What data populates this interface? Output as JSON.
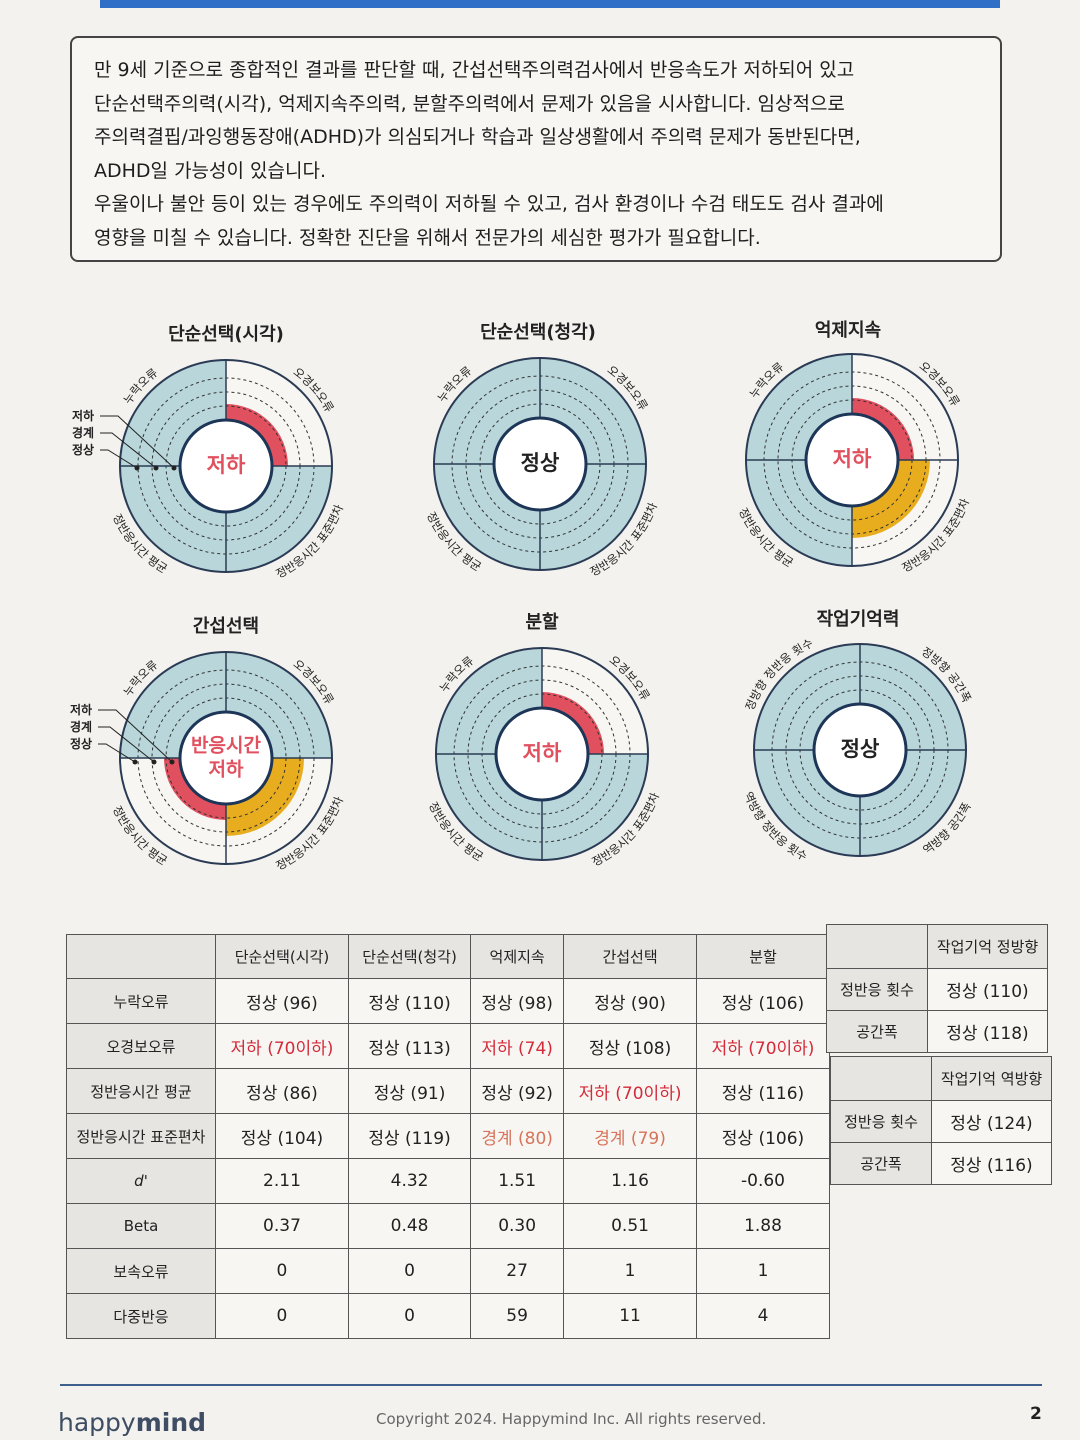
{
  "summary": {
    "lines": [
      "만 9세 기준으로 종합적인 결과를 판단할 때, 간섭선택주의력검사에서 반응속도가 저하되어 있고",
      "단순선택주의력(시각), 억제지속주의력, 분할주의력에서 문제가 있음을 시사합니다. 임상적으로",
      "주의력결핍/과잉행동장애(ADHD)가 의심되거나 학습과 일상생활에서 주의력 문제가 동반된다면,",
      "ADHD일 가능성이 있습니다.",
      "우울이나 불안 등이 있는 경우에도 주의력이 저하될 수 있고, 검사 환경이나 수검 태도도 검사 결과에",
      "영향을 미칠 수 있습니다. 정확한 진단을 위해서 전문가의 세심한 평가가 필요합니다."
    ]
  },
  "scale_key": [
    "저하",
    "경계",
    "정상"
  ],
  "colors": {
    "base": "#b9d6da",
    "low": "#e0505f",
    "border": "#e8ad1f",
    "normal_outline": "#1d3557"
  },
  "radar_charts": [
    {
      "title": "단순선택(시각)",
      "center": [
        "저하"
      ],
      "center_status": "low",
      "labels": [
        "누락오류",
        "오경보오류",
        "정반응시간 표준편차",
        "정반응시간 평균"
      ],
      "segments": [
        {
          "quadrant": "tr",
          "level": "low"
        },
        {
          "quadrant": "tl",
          "level": "normal"
        },
        {
          "quadrant": "br",
          "level": "normal"
        },
        {
          "quadrant": "bl",
          "level": "normal"
        }
      ]
    },
    {
      "title": "단순선택(청각)",
      "center": [
        "정상"
      ],
      "center_status": "normal",
      "labels": [
        "누락오류",
        "오경보오류",
        "정반응시간 표준편차",
        "정반응시간 평균"
      ],
      "segments": [
        {
          "quadrant": "tl",
          "level": "normal"
        },
        {
          "quadrant": "tr",
          "level": "normal"
        },
        {
          "quadrant": "br",
          "level": "normal"
        },
        {
          "quadrant": "bl",
          "level": "normal"
        }
      ]
    },
    {
      "title": "억제지속",
      "center": [
        "저하"
      ],
      "center_status": "low",
      "labels": [
        "누락오류",
        "오경보오류",
        "정반응시간 표준편차",
        "정반응시간 평균"
      ],
      "segments": [
        {
          "quadrant": "tr",
          "level": "low"
        },
        {
          "quadrant": "br",
          "level": "border"
        },
        {
          "quadrant": "tl",
          "level": "normal"
        },
        {
          "quadrant": "bl",
          "level": "normal"
        }
      ]
    },
    {
      "title": "간섭선택",
      "center": [
        "반응시간",
        "저하"
      ],
      "center_status": "low",
      "labels": [
        "누락오류",
        "오경보오류",
        "정반응시간 표준편차",
        "정반응시간 평균"
      ],
      "segments": [
        {
          "quadrant": "bl",
          "level": "low"
        },
        {
          "quadrant": "br",
          "level": "border"
        },
        {
          "quadrant": "tl",
          "level": "normal"
        },
        {
          "quadrant": "tr",
          "level": "normal"
        }
      ]
    },
    {
      "title": "분할",
      "center": [
        "저하"
      ],
      "center_status": "low",
      "labels": [
        "누락오류",
        "오경보오류",
        "정반응시간 표준편차",
        "정반응시간 평균"
      ],
      "segments": [
        {
          "quadrant": "tr",
          "level": "low"
        },
        {
          "quadrant": "tl",
          "level": "normal"
        },
        {
          "quadrant": "br",
          "level": "normal"
        },
        {
          "quadrant": "bl",
          "level": "normal"
        }
      ]
    },
    {
      "title": "작업기억력",
      "center": [
        "정상"
      ],
      "center_status": "normal",
      "labels": [
        "정방향 정반응 횟수",
        "정방향 공간폭",
        "역방향 공간폭",
        "역방향 정반응 횟수"
      ],
      "segments": [
        {
          "quadrant": "tl",
          "level": "normal"
        },
        {
          "quadrant": "tr",
          "level": "normal"
        },
        {
          "quadrant": "br",
          "level": "normal"
        },
        {
          "quadrant": "bl",
          "level": "normal"
        }
      ]
    }
  ],
  "main_table": {
    "headers": [
      "",
      "단순선택(시각)",
      "단순선택(청각)",
      "억제지속",
      "간섭선택",
      "분할"
    ],
    "rows": [
      {
        "label": "누락오류",
        "cells": [
          {
            "text": "정상 (96)",
            "status": "normal"
          },
          {
            "text": "정상 (110)",
            "status": "normal"
          },
          {
            "text": "정상 (98)",
            "status": "normal"
          },
          {
            "text": "정상 (90)",
            "status": "normal"
          },
          {
            "text": "정상 (106)",
            "status": "normal"
          }
        ]
      },
      {
        "label": "오경보오류",
        "cells": [
          {
            "text": "저하 (70이하)",
            "status": "low"
          },
          {
            "text": "정상 (113)",
            "status": "normal"
          },
          {
            "text": "저하 (74)",
            "status": "low"
          },
          {
            "text": "정상 (108)",
            "status": "normal"
          },
          {
            "text": "저하 (70이하)",
            "status": "low"
          }
        ]
      },
      {
        "label": "정반응시간 평균",
        "cells": [
          {
            "text": "정상 (86)",
            "status": "normal"
          },
          {
            "text": "정상 (91)",
            "status": "normal"
          },
          {
            "text": "정상 (92)",
            "status": "normal"
          },
          {
            "text": "저하 (70이하)",
            "status": "low"
          },
          {
            "text": "정상 (116)",
            "status": "normal"
          }
        ]
      },
      {
        "label": "정반응시간 표준편차",
        "cells": [
          {
            "text": "정상 (104)",
            "status": "normal"
          },
          {
            "text": "정상 (119)",
            "status": "normal"
          },
          {
            "text": "경계 (80)",
            "status": "border"
          },
          {
            "text": "경계 (79)",
            "status": "border"
          },
          {
            "text": "정상 (106)",
            "status": "normal"
          }
        ]
      },
      {
        "label": "d'",
        "cells": [
          {
            "text": "2.11",
            "status": "normal"
          },
          {
            "text": "4.32",
            "status": "normal"
          },
          {
            "text": "1.51",
            "status": "normal"
          },
          {
            "text": "1.16",
            "status": "normal"
          },
          {
            "text": "-0.60",
            "status": "normal"
          }
        ]
      },
      {
        "label": "Beta",
        "cells": [
          {
            "text": "0.37",
            "status": "normal"
          },
          {
            "text": "0.48",
            "status": "normal"
          },
          {
            "text": "0.30",
            "status": "normal"
          },
          {
            "text": "0.51",
            "status": "normal"
          },
          {
            "text": "1.88",
            "status": "normal"
          }
        ]
      },
      {
        "label": "보속오류",
        "cells": [
          {
            "text": "0",
            "status": "normal"
          },
          {
            "text": "0",
            "status": "normal"
          },
          {
            "text": "27",
            "status": "normal"
          },
          {
            "text": "1",
            "status": "normal"
          },
          {
            "text": "1",
            "status": "normal"
          }
        ]
      },
      {
        "label": "다중반응",
        "cells": [
          {
            "text": "0",
            "status": "normal"
          },
          {
            "text": "0",
            "status": "normal"
          },
          {
            "text": "59",
            "status": "normal"
          },
          {
            "text": "11",
            "status": "normal"
          },
          {
            "text": "4",
            "status": "normal"
          }
        ]
      }
    ]
  },
  "wm_forward": {
    "header": "작업기억 정방향",
    "rows": [
      {
        "label": "정반응 횟수",
        "value": "정상 (110)"
      },
      {
        "label": "공간폭",
        "value": "정상 (118)"
      }
    ]
  },
  "wm_backward": {
    "header": "작업기억 역방향",
    "rows": [
      {
        "label": "정반응 횟수",
        "value": "정상 (124)"
      },
      {
        "label": "공간폭",
        "value": "정상 (116)"
      }
    ]
  },
  "footer": {
    "logo_light": "happy",
    "logo_bold": "mind",
    "copyright": "Copyright 2024. Happymind Inc. All rights reserved.",
    "page": "2"
  }
}
